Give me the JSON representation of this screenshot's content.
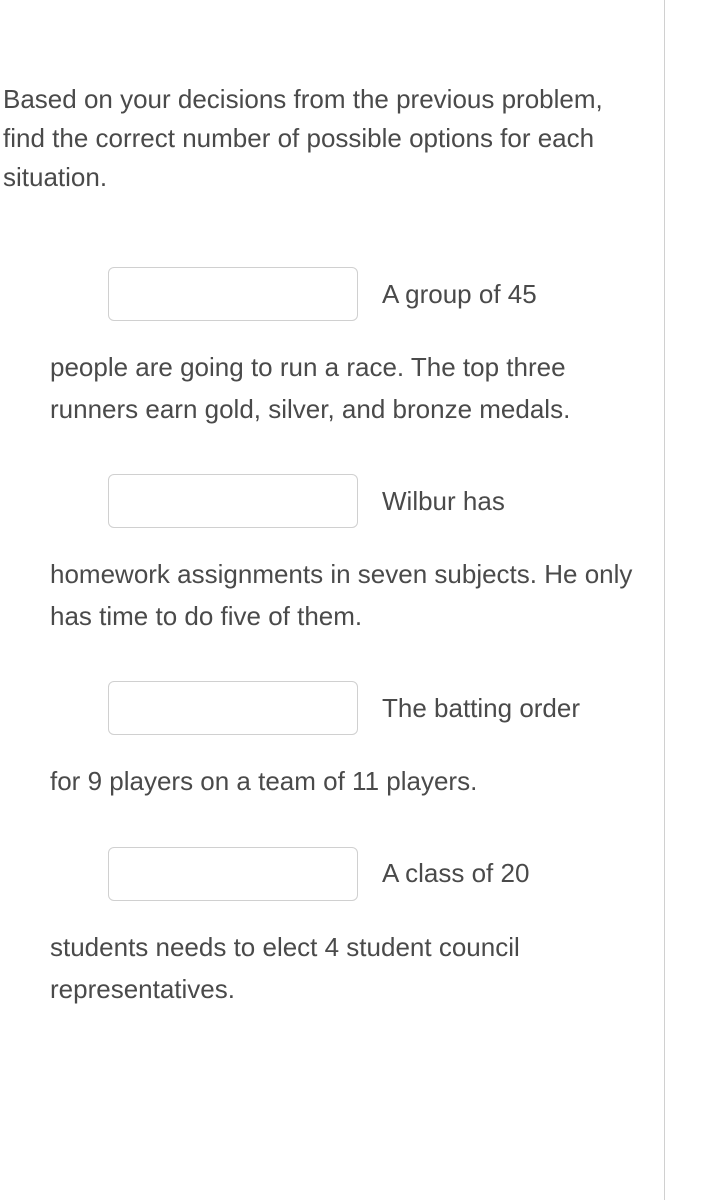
{
  "instruction": "Based on your decisions from the previous problem, find the correct number of possible options for each situation.",
  "questions": [
    {
      "inline_text": "A group of 45",
      "continuation": "people are going to run a race. The top three runners earn gold, silver, and bronze medals."
    },
    {
      "inline_text": "Wilbur has",
      "continuation": "homework assignments in seven subjects. He only has time to do five of them."
    },
    {
      "inline_text": "The batting order",
      "continuation": "for 9 players on a team of 11 players."
    },
    {
      "inline_text": "A class of 20",
      "continuation": "students needs to elect 4 student council representatives."
    }
  ],
  "colors": {
    "text": "#4a4a4a",
    "border": "#d0d0d0",
    "background": "#ffffff"
  }
}
